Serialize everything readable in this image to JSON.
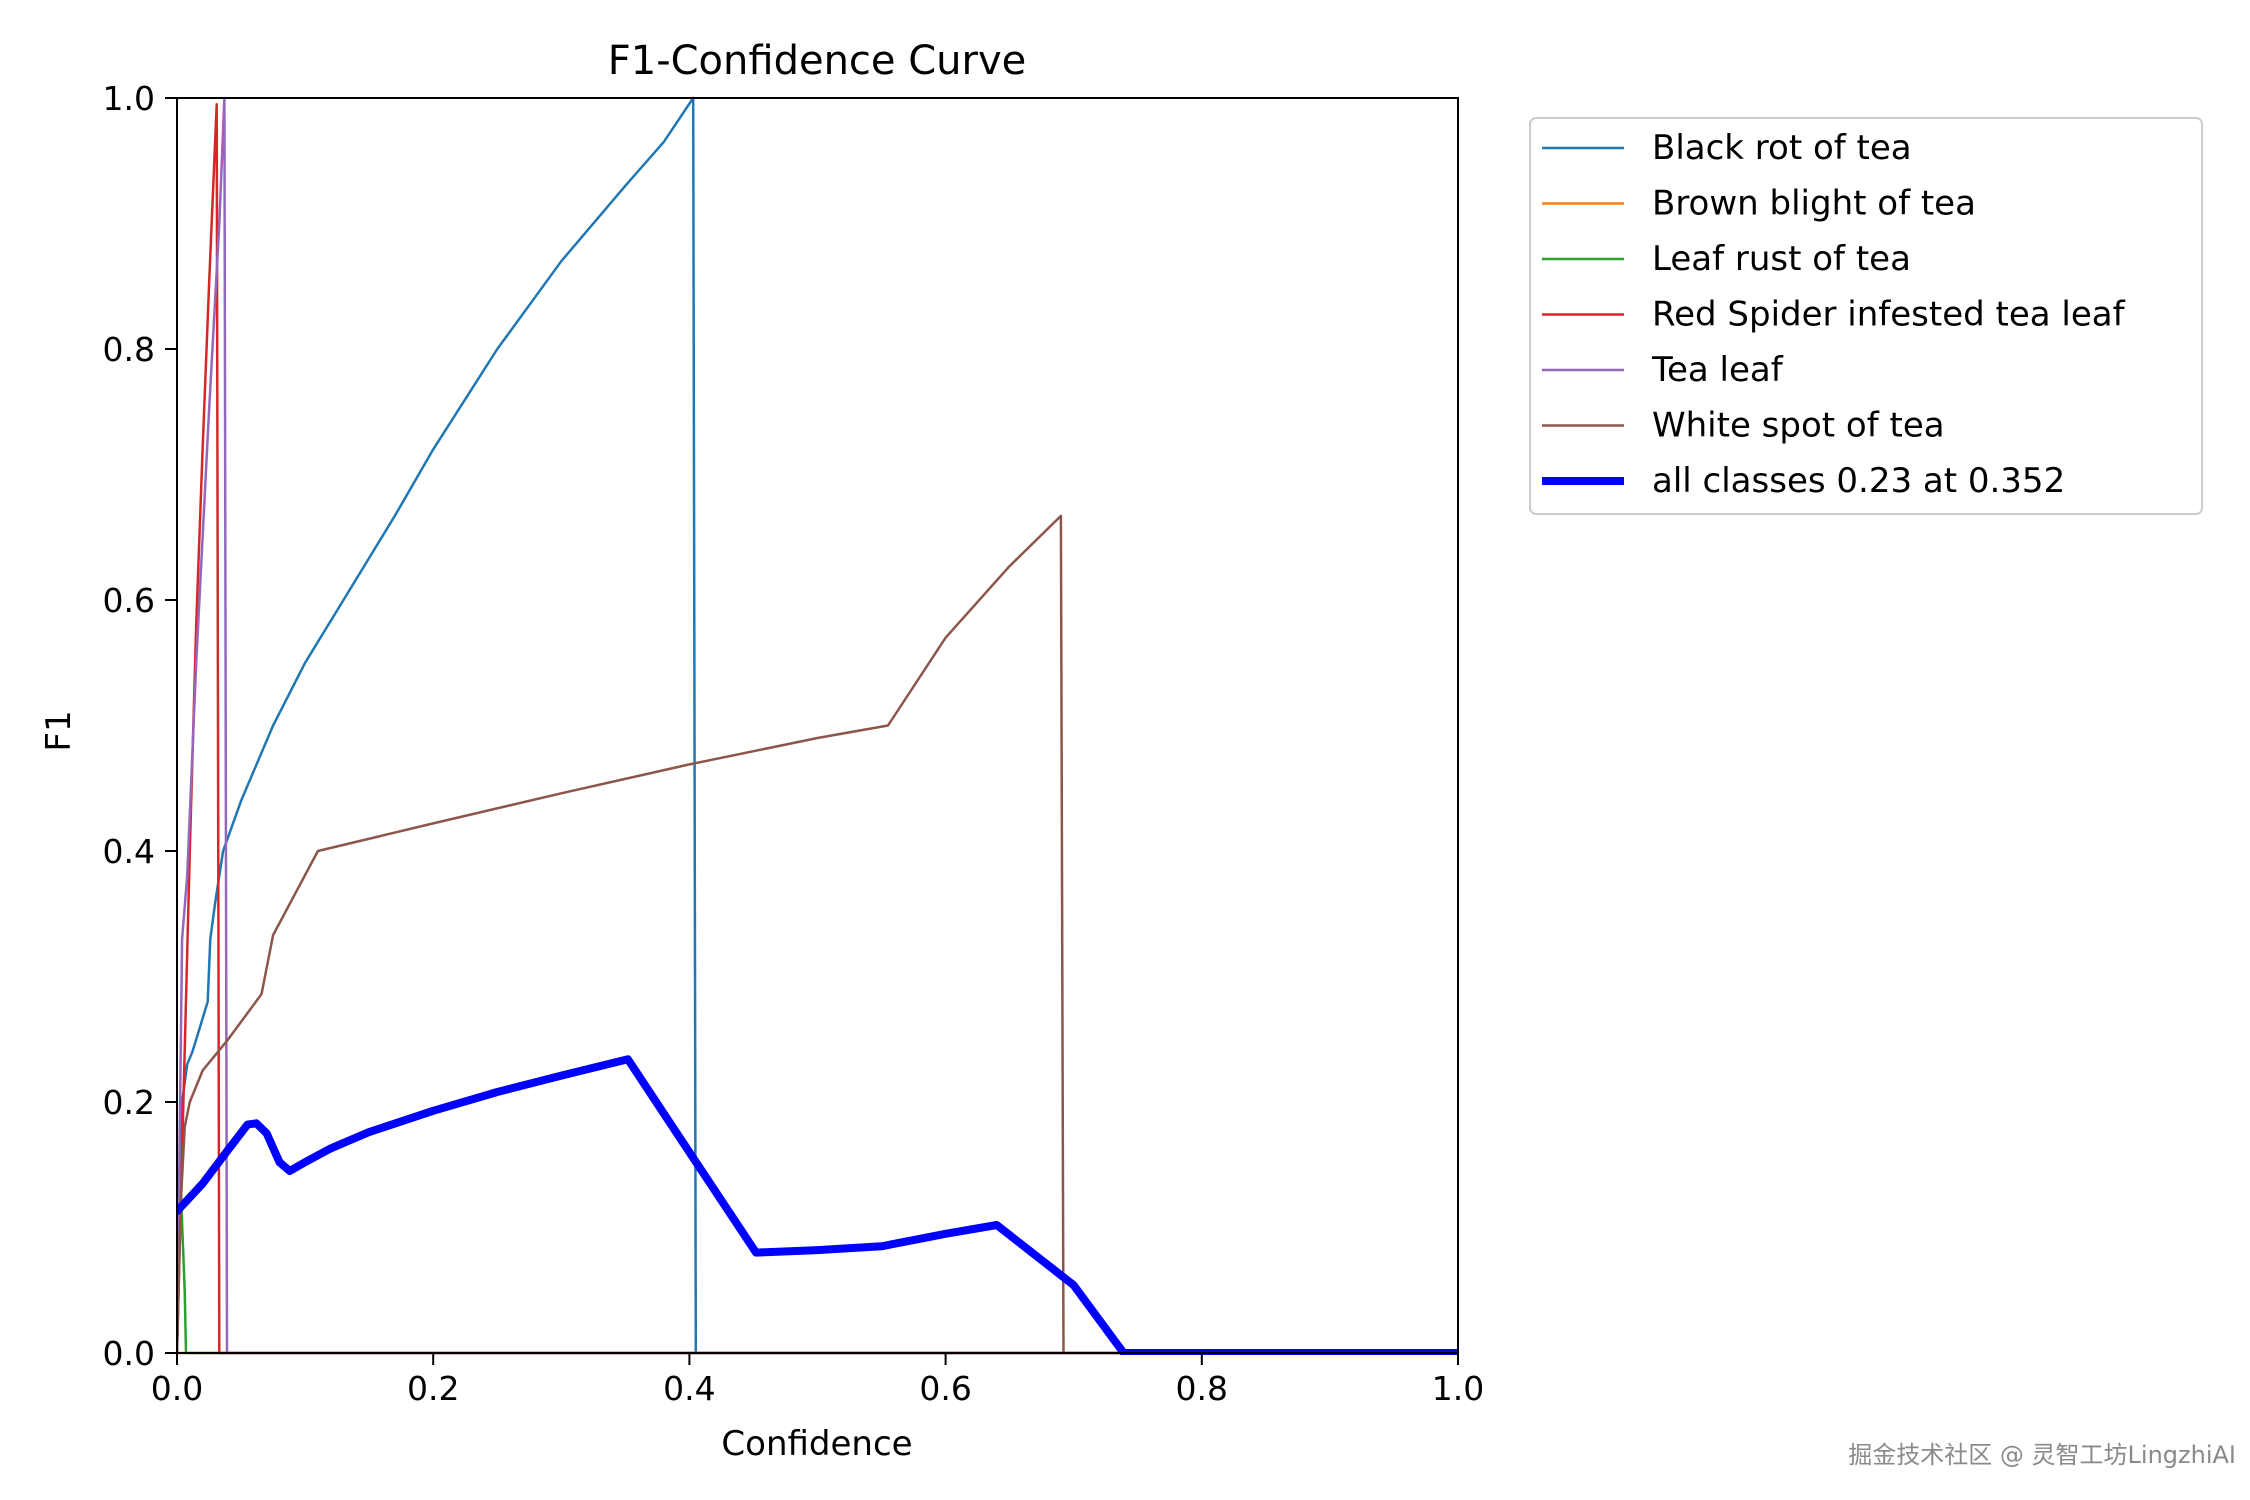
{
  "chart_data": {
    "type": "line",
    "title": "F1-Confidence Curve",
    "xlabel": "Confidence",
    "ylabel": "F1",
    "xlim": [
      0,
      1
    ],
    "ylim": [
      0,
      1
    ],
    "xticks": [
      "0.0",
      "0.2",
      "0.4",
      "0.6",
      "0.8",
      "1.0"
    ],
    "yticks": [
      "0.0",
      "0.2",
      "0.4",
      "0.6",
      "0.8",
      "1.0"
    ],
    "grid": false,
    "legend_position": "outside-upper-right",
    "series": [
      {
        "name": "Black rot of tea",
        "color": "#1f77b4",
        "x": [
          0,
          0.004,
          0.008,
          0.012,
          0.018,
          0.024,
          0.026,
          0.03,
          0.036,
          0.05,
          0.075,
          0.1,
          0.13,
          0.17,
          0.2,
          0.25,
          0.3,
          0.35,
          0.38,
          0.403,
          0.404,
          0.405,
          1
        ],
        "y": [
          0,
          0.2,
          0.23,
          0.24,
          0.26,
          0.28,
          0.33,
          0.36,
          0.4,
          0.44,
          0.5,
          0.55,
          0.6,
          0.667,
          0.72,
          0.8,
          0.87,
          0.93,
          0.965,
          1.0,
          0.5,
          0,
          0
        ]
      },
      {
        "name": "Brown blight of tea",
        "color": "#ff7f0e",
        "x": [
          0,
          1
        ],
        "y": [
          0,
          0
        ]
      },
      {
        "name": "Leaf rust of tea",
        "color": "#2ca02c",
        "x": [
          0,
          0.003,
          0.006,
          0.007,
          1
        ],
        "y": [
          0,
          0.13,
          0.05,
          0,
          0
        ]
      },
      {
        "name": "Red Spider infested tea leaf",
        "color": "#d62728",
        "x": [
          0,
          0.005,
          0.01,
          0.015,
          0.02,
          0.025,
          0.031,
          0.032,
          0.033,
          1
        ],
        "y": [
          0,
          0.2,
          0.4,
          0.58,
          0.72,
          0.85,
          0.995,
          0.5,
          0,
          0
        ]
      },
      {
        "name": "Tea leaf",
        "color": "#9467bd",
        "x": [
          0,
          0.004,
          0.008,
          0.015,
          0.025,
          0.033,
          0.037,
          0.038,
          0.039,
          1
        ],
        "y": [
          0,
          0.33,
          0.38,
          0.55,
          0.75,
          0.9,
          1.0,
          0.5,
          0,
          0
        ]
      },
      {
        "name": "White spot of tea",
        "color": "#8c564b",
        "x": [
          0,
          0.003,
          0.006,
          0.01,
          0.02,
          0.04,
          0.066,
          0.075,
          0.11,
          0.2,
          0.3,
          0.4,
          0.5,
          0.555,
          0.6,
          0.65,
          0.69,
          0.691,
          0.692,
          1
        ],
        "y": [
          0,
          0.12,
          0.18,
          0.2,
          0.225,
          0.25,
          0.286,
          0.333,
          0.4,
          0.422,
          0.446,
          0.469,
          0.49,
          0.5,
          0.57,
          0.627,
          0.667,
          0.33,
          0,
          0
        ]
      },
      {
        "name": "all classes 0.23 at 0.352",
        "color": "#0000ff",
        "bold": true,
        "x": [
          0,
          0.02,
          0.04,
          0.055,
          0.062,
          0.07,
          0.08,
          0.088,
          0.1,
          0.12,
          0.15,
          0.2,
          0.25,
          0.3,
          0.352,
          0.4,
          0.452,
          0.5,
          0.55,
          0.6,
          0.64,
          0.7,
          0.739,
          0.8,
          1
        ],
        "y": [
          0.113,
          0.135,
          0.162,
          0.182,
          0.183,
          0.175,
          0.152,
          0.145,
          0.152,
          0.163,
          0.176,
          0.193,
          0.208,
          0.221,
          0.234,
          0.16,
          0.08,
          0.082,
          0.085,
          0.095,
          0.102,
          0.054,
          0,
          0,
          0
        ]
      }
    ]
  },
  "watermark": "掘金技术社区 @ 灵智工坊LingzhiAI"
}
